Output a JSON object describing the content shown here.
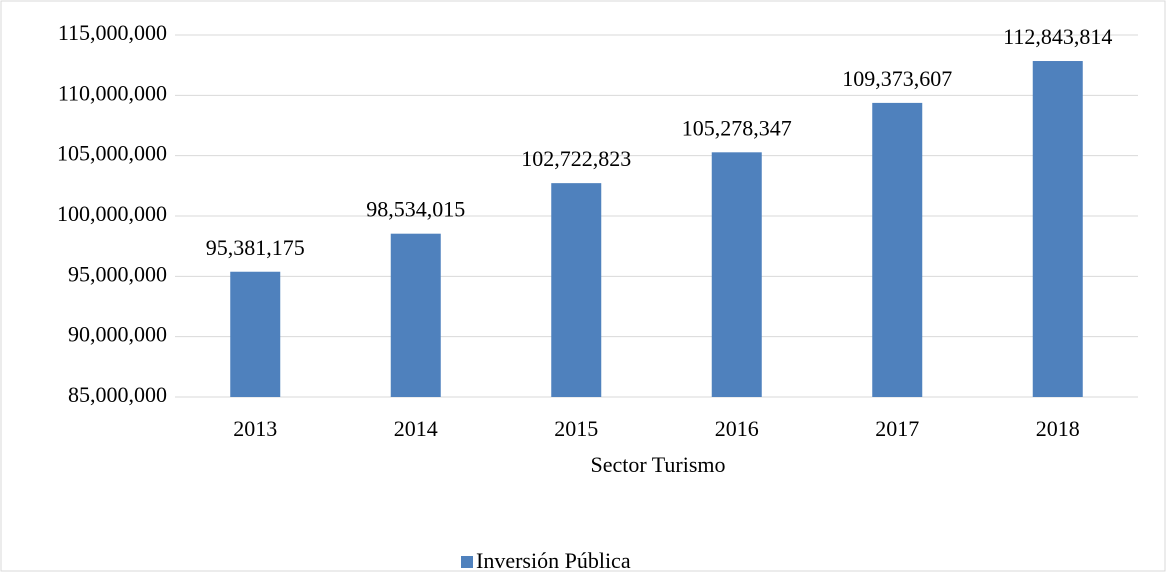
{
  "chart_data": {
    "type": "bar",
    "categories": [
      "2013",
      "2014",
      "2015",
      "2016",
      "2017",
      "2018"
    ],
    "series": [
      {
        "name": "Inversión Pública",
        "color": "#4f81bd",
        "values": [
          95381175,
          98534015,
          102722823,
          105278347,
          109373607,
          112843814
        ],
        "value_labels": [
          "95,381,175",
          "98,534,015",
          "102,722,823",
          "105,278,347",
          "109,373,607",
          "112,843,814"
        ]
      }
    ],
    "xlabel": "Sector Turismo",
    "ylim": [
      85000000,
      115000000
    ],
    "yticks": [
      {
        "value": 85000000,
        "label": "85,000,000"
      },
      {
        "value": 90000000,
        "label": "90,000,000"
      },
      {
        "value": 95000000,
        "label": "95,000,000"
      },
      {
        "value": 100000000,
        "label": "100,000,000"
      },
      {
        "value": 105000000,
        "label": "105,000,000"
      },
      {
        "value": 110000000,
        "label": "110,000,000"
      },
      {
        "value": 115000000,
        "label": "115,000,000"
      }
    ],
    "grid": true,
    "legend": "bottom"
  }
}
